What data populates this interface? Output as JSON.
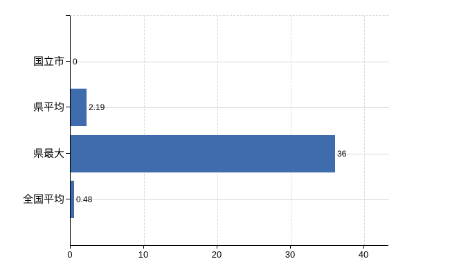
{
  "chart_data": {
    "type": "bar",
    "orientation": "horizontal",
    "title": "",
    "xlabel": "",
    "ylabel": "",
    "categories": [
      "国立市",
      "県平均",
      "県最大",
      "全国平均"
    ],
    "values": [
      0,
      2.19,
      36,
      0.48
    ],
    "value_labels": [
      "0",
      "2.19",
      "36",
      "0.48"
    ],
    "x_ticks": [
      0,
      10,
      20,
      30,
      40
    ],
    "x_tick_labels": [
      "0",
      "10",
      "20",
      "30",
      "40"
    ],
    "xlim": [
      0,
      43.3
    ],
    "grid": "on",
    "legend": "none",
    "bar_color": "#3e6cad",
    "gridline_color": "#d7dbd4",
    "dashed_line_color": "#d6d8d4",
    "axis_color": "#000000",
    "text_color": "#000000",
    "background_color": "#ffffff"
  }
}
